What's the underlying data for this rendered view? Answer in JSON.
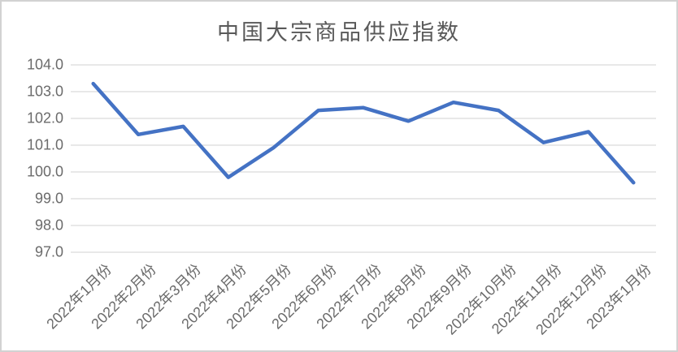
{
  "colors": {
    "line": "#4472C4",
    "gridline": "#D9D9D9",
    "axis_label_text": "#6B6B6B",
    "title_text": "#595959",
    "border": "#D2D2D2",
    "background": "#FFFFFF"
  },
  "chart_data": {
    "type": "line",
    "title": "中国大宗商品供应指数",
    "categories": [
      "2022年1月份",
      "2022年2月份",
      "2022年3月份",
      "2022年4月份",
      "2022年5月份",
      "2022年6月份",
      "2022年7月份",
      "2022年8月份",
      "2022年9月份",
      "2022年10月份",
      "2022年11月份",
      "2022年12月份",
      "2023年1月份"
    ],
    "values": [
      103.3,
      101.4,
      101.7,
      99.8,
      100.9,
      102.3,
      102.4,
      101.9,
      102.6,
      102.3,
      101.1,
      101.5,
      99.6
    ],
    "ylim": [
      97.0,
      104.0
    ],
    "ytick_step": 1.0,
    "ytick_labels": [
      "104.0",
      "103.0",
      "102.0",
      "101.0",
      "100.0",
      "99.0",
      "98.0",
      "97.0"
    ],
    "xlabel": "",
    "ylabel": "",
    "grid": true,
    "legend": false,
    "x_label_rotation_deg": -45
  }
}
